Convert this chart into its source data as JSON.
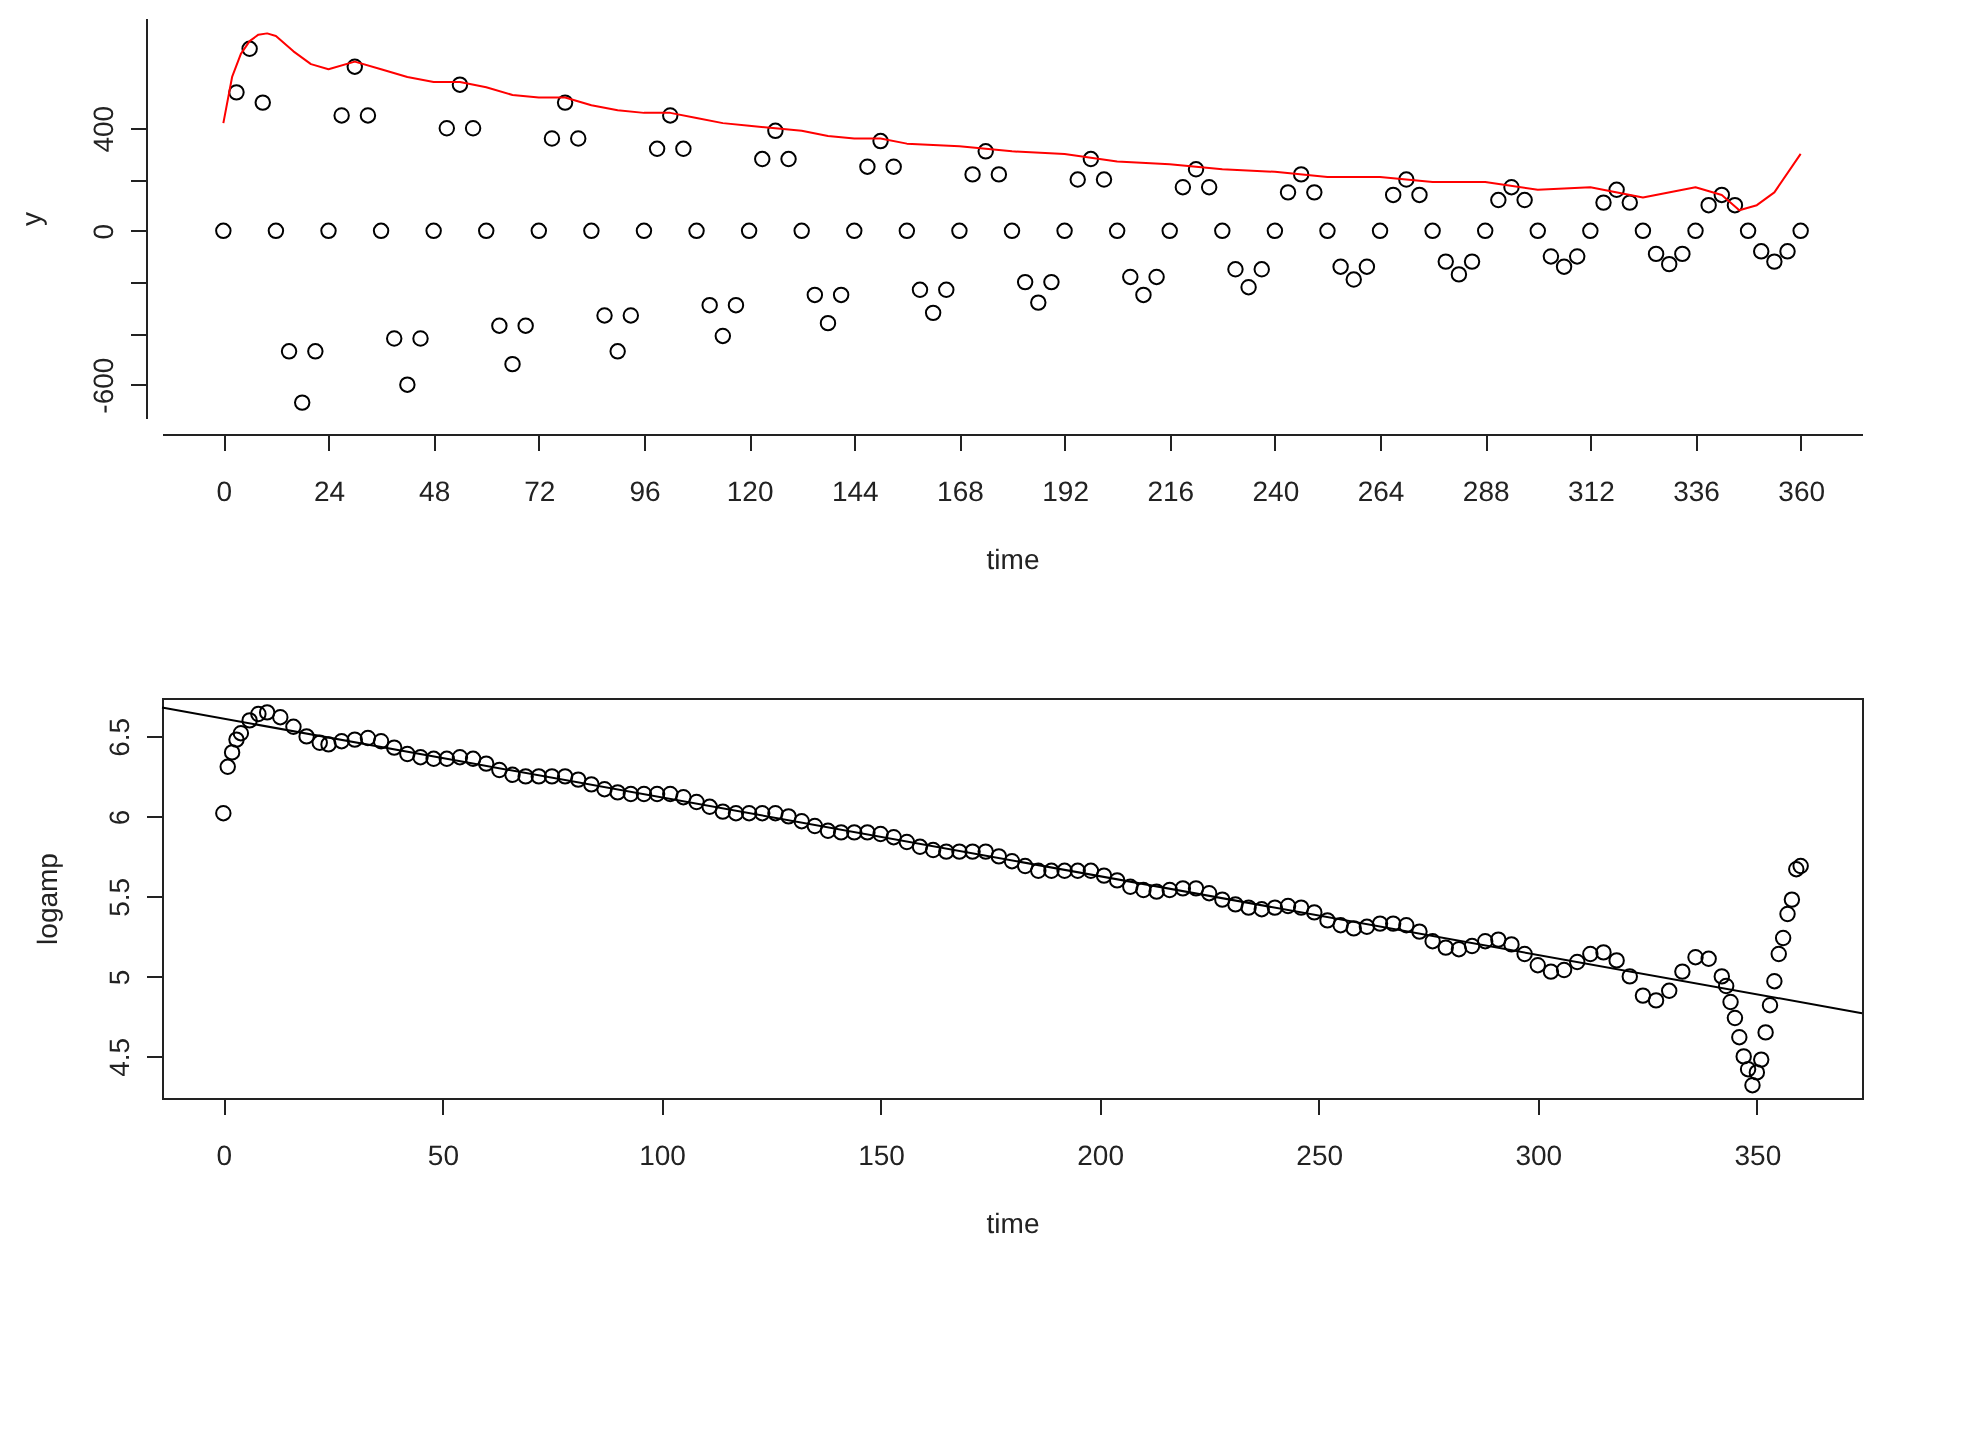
{
  "chart_data": [
    {
      "type": "scatter",
      "xlabel": "time",
      "ylabel": "y",
      "xlim": [
        -14,
        374
      ],
      "ylim": [
        -730,
        830
      ],
      "xticks": [
        0,
        24,
        48,
        72,
        96,
        120,
        144,
        168,
        192,
        216,
        240,
        264,
        288,
        312,
        336,
        360
      ],
      "yticks": [
        -600,
        {
          "value": -400,
          "label": null
        },
        {
          "value": -200,
          "label": null
        },
        0,
        {
          "value": 200,
          "label": null
        },
        400
      ],
      "grid": false,
      "series": [
        {
          "type": "scatter",
          "marker": "circle",
          "color": "#000000",
          "x": [
            0,
            3,
            6,
            9,
            12,
            15,
            18,
            21,
            24,
            27,
            30,
            33,
            36,
            39,
            42,
            45,
            48,
            51,
            54,
            57,
            60,
            63,
            66,
            69,
            72,
            75,
            78,
            81,
            84,
            87,
            90,
            93,
            96,
            99,
            102,
            105,
            108,
            111,
            114,
            117,
            120,
            123,
            126,
            129,
            132,
            135,
            138,
            141,
            144,
            147,
            150,
            153,
            156,
            159,
            162,
            165,
            168,
            171,
            174,
            177,
            180,
            183,
            186,
            189,
            192,
            195,
            198,
            201,
            204,
            207,
            210,
            213,
            216,
            219,
            222,
            225,
            228,
            231,
            234,
            237,
            240,
            243,
            246,
            249,
            252,
            255,
            258,
            261,
            264,
            267,
            270,
            273,
            276,
            279,
            282,
            285,
            288,
            291,
            294,
            297,
            300,
            303,
            306,
            309,
            312,
            315,
            318,
            321,
            324,
            327,
            330,
            333,
            336,
            339,
            342,
            345,
            348,
            351,
            354,
            357,
            360
          ],
          "values": [
            0,
            540,
            710,
            500,
            0,
            -470,
            -670,
            -470,
            0,
            450,
            640,
            450,
            0,
            -420,
            -600,
            -420,
            0,
            400,
            570,
            400,
            0,
            -370,
            -520,
            -370,
            0,
            360,
            500,
            360,
            0,
            -330,
            -470,
            -330,
            0,
            320,
            450,
            320,
            0,
            -290,
            -410,
            -290,
            0,
            280,
            390,
            280,
            0,
            -250,
            -360,
            -250,
            0,
            250,
            350,
            250,
            0,
            -230,
            -320,
            -230,
            0,
            220,
            310,
            220,
            0,
            -200,
            -280,
            -200,
            0,
            200,
            280,
            200,
            0,
            -180,
            -250,
            -180,
            0,
            170,
            240,
            170,
            0,
            -150,
            -220,
            -150,
            0,
            150,
            220,
            150,
            0,
            -140,
            -190,
            -140,
            0,
            140,
            200,
            140,
            0,
            -120,
            -170,
            -120,
            0,
            120,
            170,
            120,
            0,
            -100,
            -140,
            -100,
            0,
            110,
            160,
            110,
            0,
            -90,
            -130,
            -90,
            0,
            100,
            140,
            100,
            0,
            -80,
            -120,
            -80,
            0
          ]
        },
        {
          "type": "line",
          "color": "#ff0000",
          "x": [
            0,
            2,
            4,
            6,
            8,
            10,
            12,
            16,
            20,
            24,
            30,
            36,
            42,
            48,
            54,
            60,
            66,
            72,
            78,
            84,
            90,
            96,
            102,
            108,
            114,
            120,
            126,
            132,
            138,
            144,
            150,
            156,
            168,
            180,
            192,
            204,
            216,
            228,
            240,
            252,
            264,
            276,
            288,
            300,
            312,
            324,
            336,
            342,
            346,
            350,
            354,
            360
          ],
          "values": [
            420,
            600,
            690,
            740,
            765,
            770,
            760,
            700,
            650,
            630,
            660,
            630,
            600,
            580,
            580,
            560,
            530,
            520,
            520,
            490,
            470,
            460,
            460,
            440,
            420,
            410,
            400,
            390,
            370,
            360,
            360,
            340,
            330,
            310,
            300,
            270,
            260,
            240,
            230,
            210,
            210,
            190,
            190,
            160,
            170,
            130,
            170,
            140,
            80,
            100,
            150,
            300
          ]
        }
      ]
    },
    {
      "type": "scatter",
      "xlabel": "time",
      "ylabel": "logamp",
      "xlim": [
        -14,
        374
      ],
      "ylim": [
        4.24,
        6.74
      ],
      "xticks": [
        0,
        50,
        100,
        150,
        200,
        250,
        300,
        350
      ],
      "yticks": [
        4.5,
        5.0,
        5.5,
        6.0,
        6.5
      ],
      "grid": false,
      "series": [
        {
          "type": "scatter",
          "marker": "circle",
          "color": "#000000",
          "x": [
            0,
            1,
            2,
            3,
            4,
            6,
            8,
            10,
            13,
            16,
            19,
            22,
            24,
            27,
            30,
            33,
            36,
            39,
            42,
            45,
            48,
            51,
            54,
            57,
            60,
            63,
            66,
            69,
            72,
            75,
            78,
            81,
            84,
            87,
            90,
            93,
            96,
            99,
            102,
            105,
            108,
            111,
            114,
            117,
            120,
            123,
            126,
            129,
            132,
            135,
            138,
            141,
            144,
            147,
            150,
            153,
            156,
            159,
            162,
            165,
            168,
            171,
            174,
            177,
            180,
            183,
            186,
            189,
            192,
            195,
            198,
            201,
            204,
            207,
            210,
            213,
            216,
            219,
            222,
            225,
            228,
            231,
            234,
            237,
            240,
            243,
            246,
            249,
            252,
            255,
            258,
            261,
            264,
            267,
            270,
            273,
            276,
            279,
            282,
            285,
            288,
            291,
            294,
            297,
            300,
            303,
            306,
            309,
            312,
            315,
            318,
            321,
            324,
            327,
            330,
            333,
            336,
            339,
            342,
            343,
            344,
            345,
            346,
            347,
            348,
            349,
            350,
            351,
            352,
            353,
            354,
            355,
            356,
            357,
            358,
            359,
            360
          ],
          "values": [
            6.02,
            6.31,
            6.4,
            6.48,
            6.52,
            6.6,
            6.64,
            6.65,
            6.62,
            6.56,
            6.5,
            6.46,
            6.45,
            6.47,
            6.48,
            6.49,
            6.47,
            6.43,
            6.39,
            6.37,
            6.36,
            6.36,
            6.37,
            6.36,
            6.33,
            6.29,
            6.26,
            6.25,
            6.25,
            6.25,
            6.25,
            6.23,
            6.2,
            6.17,
            6.15,
            6.14,
            6.14,
            6.14,
            6.14,
            6.12,
            6.09,
            6.06,
            6.03,
            6.02,
            6.02,
            6.02,
            6.02,
            6.0,
            5.97,
            5.94,
            5.91,
            5.9,
            5.9,
            5.9,
            5.89,
            5.87,
            5.84,
            5.81,
            5.79,
            5.78,
            5.78,
            5.78,
            5.78,
            5.75,
            5.72,
            5.69,
            5.66,
            5.66,
            5.66,
            5.66,
            5.66,
            5.63,
            5.6,
            5.56,
            5.54,
            5.53,
            5.54,
            5.55,
            5.55,
            5.52,
            5.48,
            5.45,
            5.43,
            5.42,
            5.43,
            5.44,
            5.43,
            5.4,
            5.35,
            5.32,
            5.3,
            5.31,
            5.33,
            5.33,
            5.32,
            5.28,
            5.22,
            5.18,
            5.17,
            5.19,
            5.22,
            5.23,
            5.2,
            5.14,
            5.07,
            5.03,
            5.04,
            5.09,
            5.14,
            5.15,
            5.1,
            5.0,
            4.88,
            4.85,
            4.91,
            5.03,
            5.12,
            5.11,
            5.0,
            4.94,
            4.84,
            4.74,
            4.62,
            4.5,
            4.42,
            4.32,
            4.4,
            4.48,
            4.65,
            4.82,
            4.97,
            5.14,
            5.24,
            5.39,
            5.48,
            5.67,
            5.69
          ]
        },
        {
          "type": "line",
          "color": "#000000",
          "x": [
            -14,
            374
          ],
          "values": [
            6.68,
            4.77
          ]
        }
      ]
    }
  ]
}
